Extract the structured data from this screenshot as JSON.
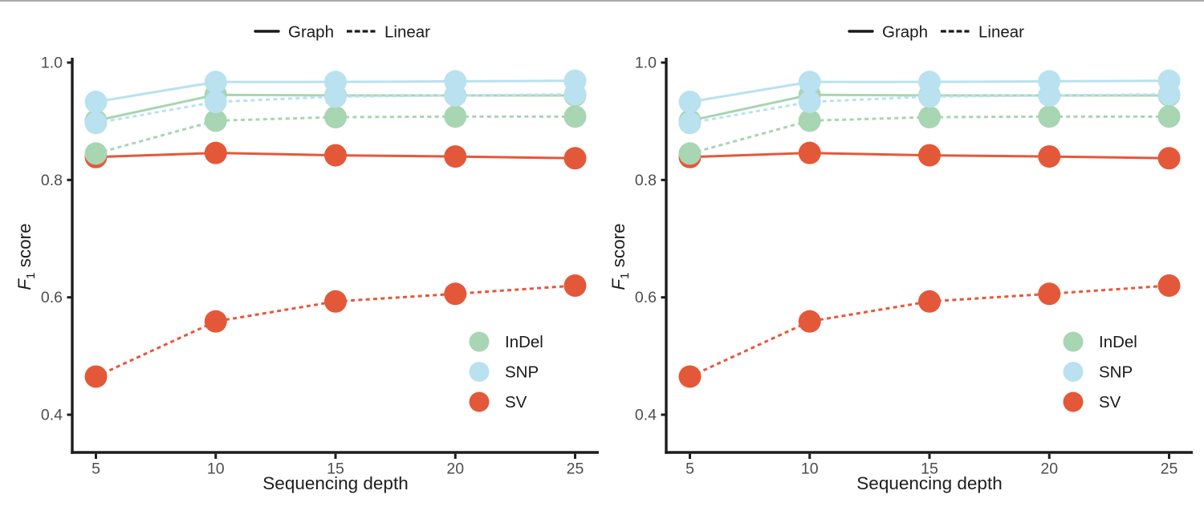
{
  "page": {
    "background": "#ffffff",
    "top_border_color": "#ababab"
  },
  "chart_data": {
    "type": "line",
    "title": "",
    "xlabel": "Sequencing depth",
    "ylabel": {
      "prefix_italic": "F",
      "subscript": "1",
      "suffix": " score"
    },
    "x": [
      5,
      10,
      15,
      20,
      25
    ],
    "x_tick_labels": [
      "5",
      "10",
      "15",
      "20",
      "25"
    ],
    "y_ticks": [
      1.0,
      0.8,
      0.6,
      0.4
    ],
    "y_tick_labels": [
      "1.0",
      "0.8",
      "0.6",
      "0.4"
    ],
    "ylim": [
      0.34,
      1.0
    ],
    "grid": false,
    "legend_methods": [
      {
        "label": "Graph",
        "line_style": "solid"
      },
      {
        "label": "Linear",
        "line_style": "dashed"
      }
    ],
    "legend_variants": [
      {
        "label": "InDel",
        "color": "#a8d5b2"
      },
      {
        "label": "SNP",
        "color": "#b9e1f0"
      },
      {
        "label": "SV",
        "color": "#e4583a"
      }
    ],
    "colors": {
      "axis": "#1d1d1d",
      "tick_label": "#4d4d4d",
      "legend_text": "#1a1a1a",
      "indel": "#a8d5b2",
      "snp": "#b9e1f0",
      "sv": "#e4583a"
    },
    "panels": [
      {
        "name": "left",
        "series": [
          {
            "variant": "InDel",
            "method": "Graph",
            "line_style": "solid",
            "color": "#a8d5b2",
            "values": [
              0.901,
              0.945,
              0.944,
              0.944,
              0.944
            ]
          },
          {
            "variant": "InDel",
            "method": "Linear",
            "line_style": "dashed",
            "color": "#a8d5b2",
            "values": [
              0.845,
              0.901,
              0.907,
              0.908,
              0.908
            ]
          },
          {
            "variant": "SNP",
            "method": "Graph",
            "line_style": "solid",
            "color": "#b9e1f0",
            "values": [
              0.933,
              0.967,
              0.967,
              0.968,
              0.969
            ]
          },
          {
            "variant": "SNP",
            "method": "Linear",
            "line_style": "dashed",
            "color": "#b9e1f0",
            "values": [
              0.897,
              0.933,
              0.942,
              0.944,
              0.946
            ]
          },
          {
            "variant": "SV",
            "method": "Graph",
            "line_style": "solid",
            "color": "#e4583a",
            "values": [
              0.839,
              0.846,
              0.842,
              0.84,
              0.837
            ]
          },
          {
            "variant": "SV",
            "method": "Linear",
            "line_style": "dashed",
            "color": "#e4583a",
            "values": [
              0.465,
              0.559,
              0.593,
              0.606,
              0.62
            ]
          }
        ]
      },
      {
        "name": "right",
        "series": [
          {
            "variant": "InDel",
            "method": "Graph",
            "line_style": "solid",
            "color": "#a8d5b2",
            "values": [
              0.901,
              0.945,
              0.944,
              0.944,
              0.944
            ]
          },
          {
            "variant": "InDel",
            "method": "Linear",
            "line_style": "dashed",
            "color": "#a8d5b2",
            "values": [
              0.845,
              0.901,
              0.907,
              0.908,
              0.908
            ]
          },
          {
            "variant": "SNP",
            "method": "Graph",
            "line_style": "solid",
            "color": "#b9e1f0",
            "values": [
              0.933,
              0.967,
              0.967,
              0.968,
              0.969
            ]
          },
          {
            "variant": "SNP",
            "method": "Linear",
            "line_style": "dashed",
            "color": "#b9e1f0",
            "values": [
              0.897,
              0.933,
              0.942,
              0.944,
              0.946
            ]
          },
          {
            "variant": "SV",
            "method": "Graph",
            "line_style": "solid",
            "color": "#e4583a",
            "values": [
              0.839,
              0.846,
              0.842,
              0.84,
              0.837
            ]
          },
          {
            "variant": "SV",
            "method": "Linear",
            "line_style": "dashed",
            "color": "#e4583a",
            "values": [
              0.465,
              0.559,
              0.593,
              0.606,
              0.62
            ]
          }
        ]
      }
    ]
  }
}
